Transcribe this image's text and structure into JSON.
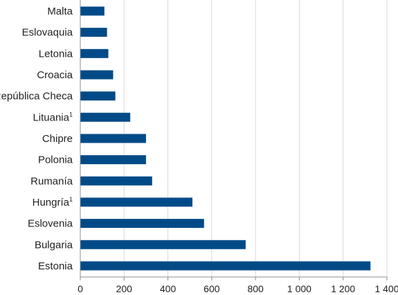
{
  "chart_data": {
    "type": "bar",
    "orientation": "horizontal",
    "categories": [
      {
        "label": "Malta",
        "note": ""
      },
      {
        "label": "Eslovaquia",
        "note": ""
      },
      {
        "label": "Letonia",
        "note": ""
      },
      {
        "label": "Croacia",
        "note": ""
      },
      {
        "label": "República Checa",
        "note": ""
      },
      {
        "label": "Lituania",
        "note": "1"
      },
      {
        "label": "Chipre",
        "note": ""
      },
      {
        "label": "Polonia",
        "note": ""
      },
      {
        "label": "Rumanía",
        "note": ""
      },
      {
        "label": "Hungría",
        "note": "1"
      },
      {
        "label": "Eslovenia",
        "note": ""
      },
      {
        "label": "Bulgaria",
        "note": ""
      },
      {
        "label": "Estonia",
        "note": ""
      }
    ],
    "values": [
      110,
      122,
      128,
      150,
      160,
      228,
      300,
      300,
      328,
      512,
      565,
      755,
      1325
    ],
    "xlim": [
      0,
      1400
    ],
    "xticks": [
      {
        "value": 0,
        "label": "0"
      },
      {
        "value": 200,
        "label": "200"
      },
      {
        "value": 400,
        "label": "400"
      },
      {
        "value": 600,
        "label": "600"
      },
      {
        "value": 800,
        "label": "800"
      },
      {
        "value": 1000,
        "label": "1 000"
      },
      {
        "value": 1200,
        "label": "1 200"
      },
      {
        "value": 1400,
        "label": "1 400"
      }
    ],
    "grid": true,
    "colors": {
      "bar": "#004b87",
      "grid": "#d9d9d9",
      "axis": "#8c8c8c"
    },
    "title": "",
    "xlabel": "",
    "ylabel": ""
  }
}
